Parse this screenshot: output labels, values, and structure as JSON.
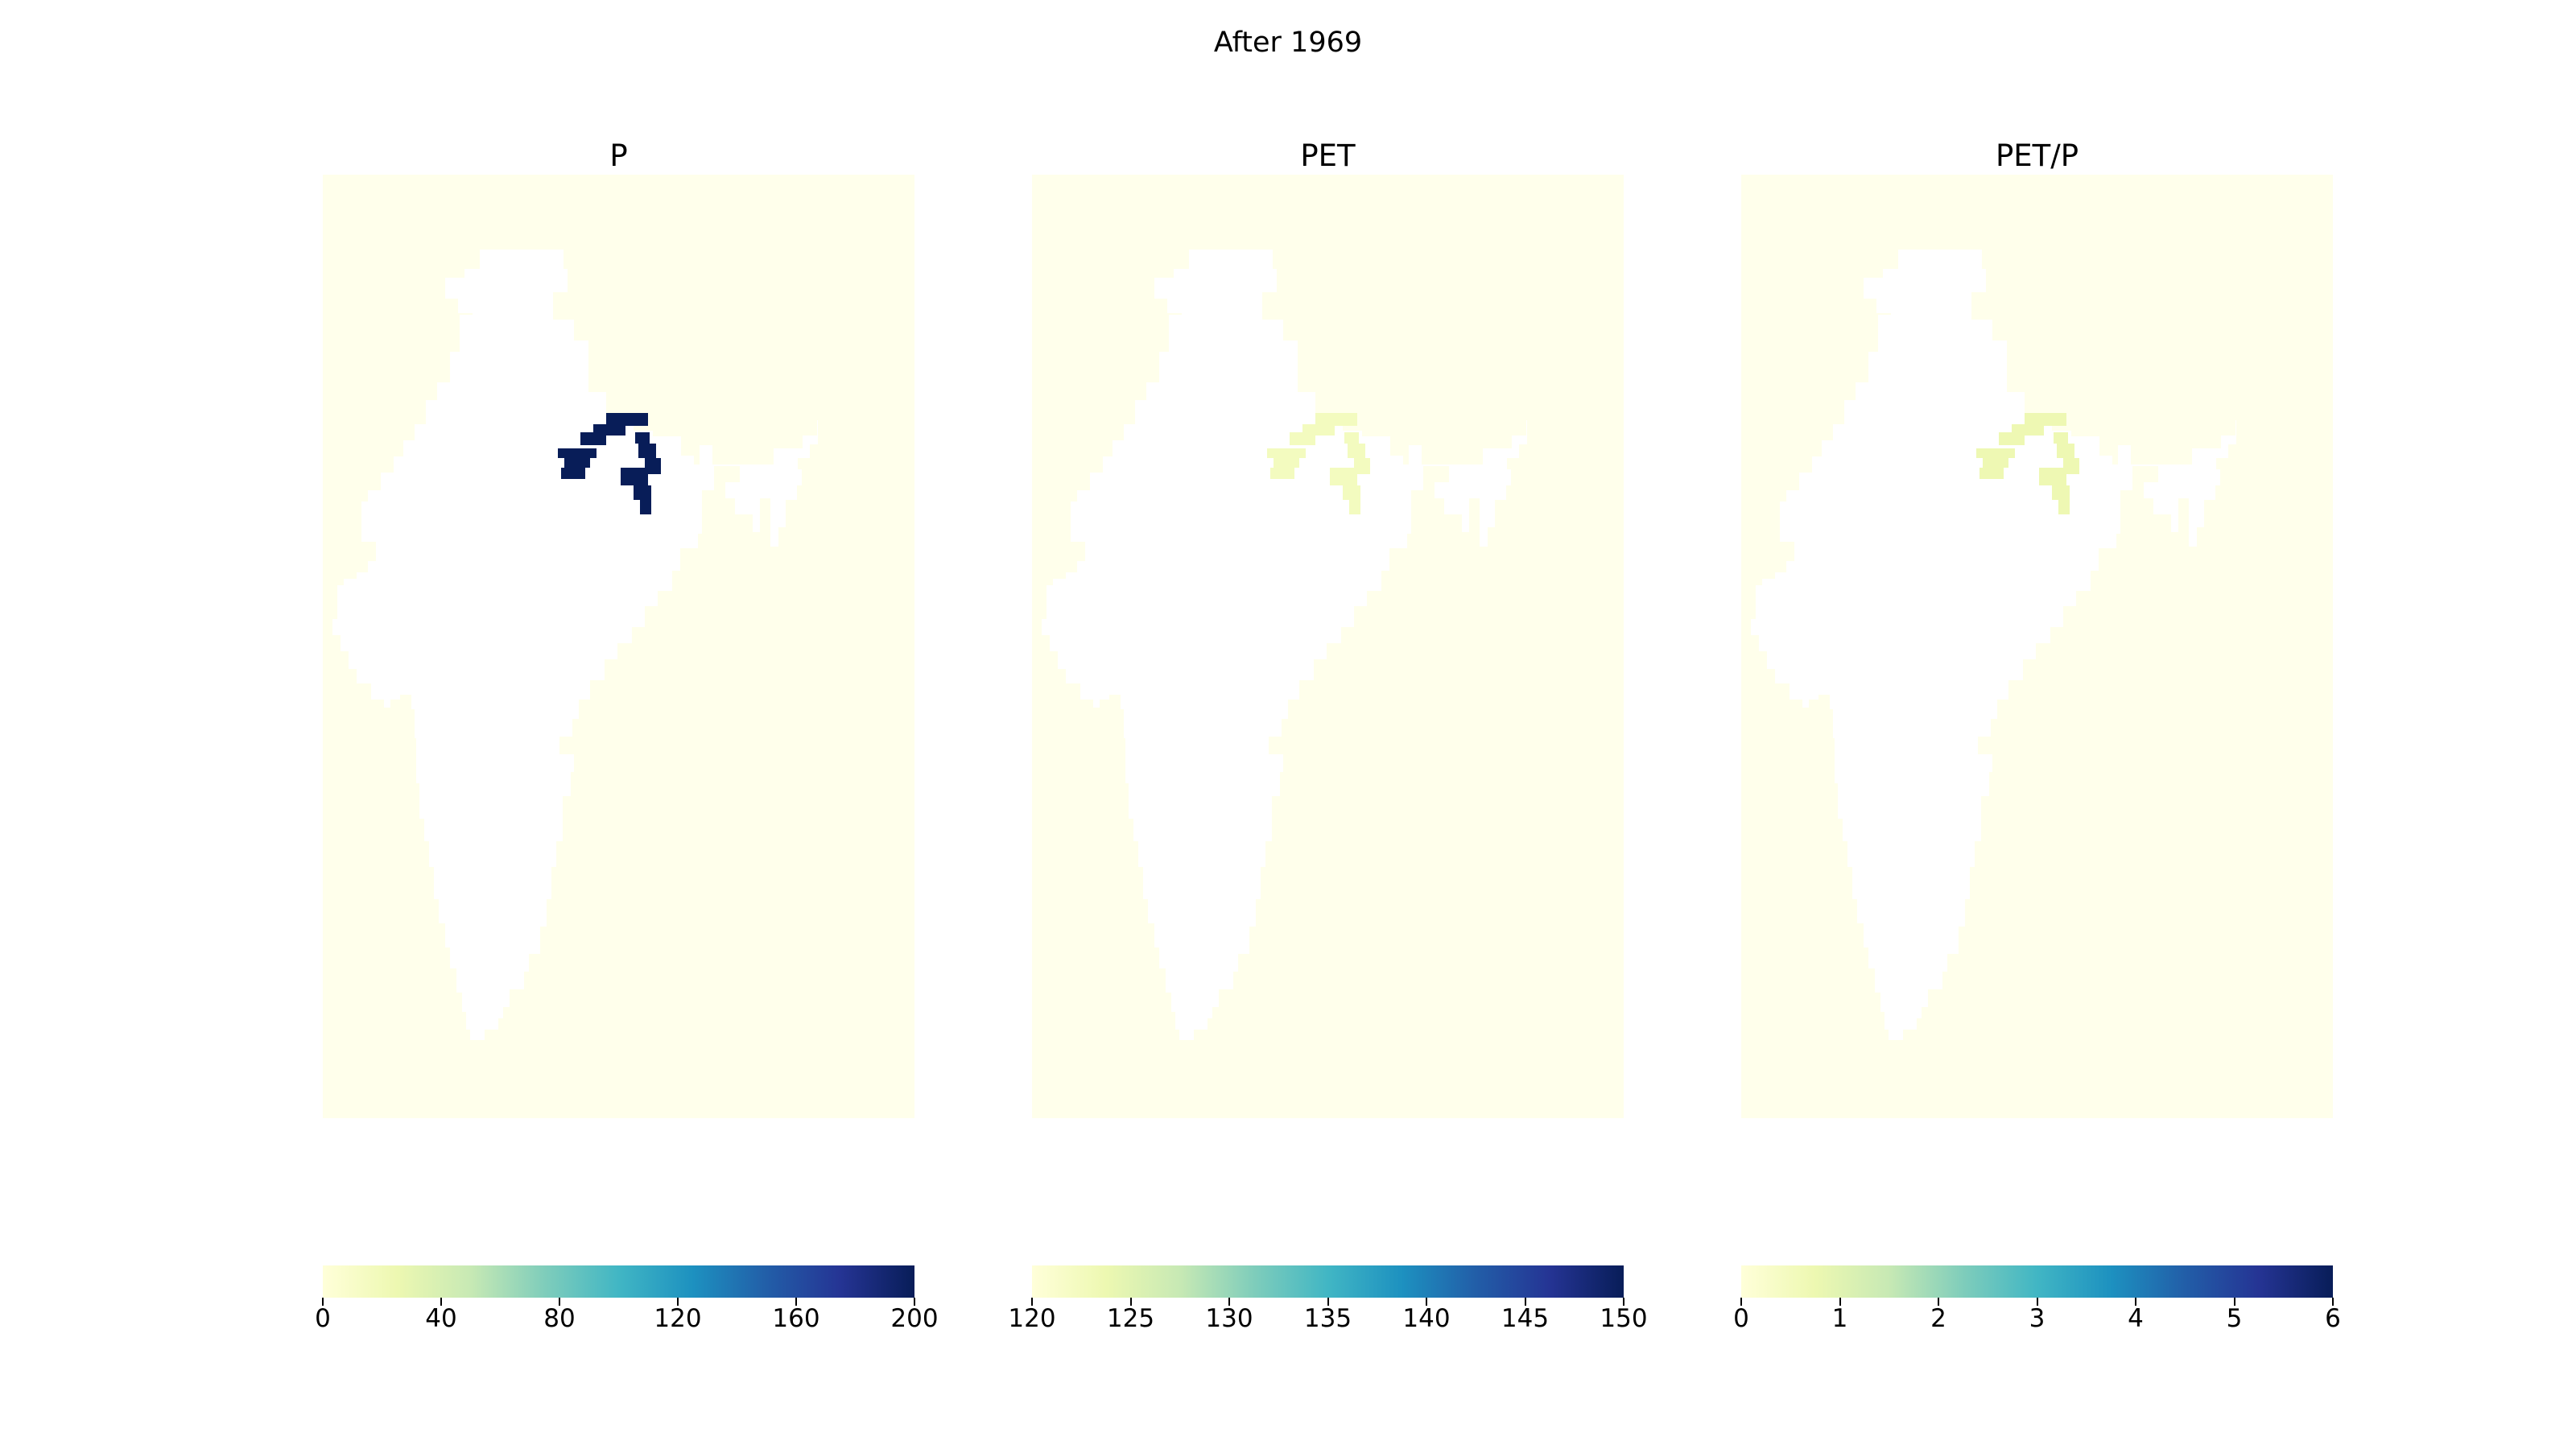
{
  "figure": {
    "title": "After 1969",
    "background_color": "#ffffeb",
    "land_color": "#ffffff",
    "colormap": "YlGnBu",
    "colormap_stops": [
      "#ffffd9",
      "#edf8b1",
      "#c7e9b4",
      "#7fcdbb",
      "#41b6c4",
      "#1d91c0",
      "#225ea8",
      "#253494",
      "#081d58"
    ]
  },
  "panels": [
    {
      "title": "P",
      "colorbar": {
        "min": 0,
        "max": 200,
        "ticks": [
          "0",
          "40",
          "80",
          "120",
          "160",
          "200"
        ]
      },
      "highlight_region": "northeast",
      "highlight_level": 1.0
    },
    {
      "title": "PET",
      "colorbar": {
        "min": 120,
        "max": 150,
        "ticks": [
          "120",
          "125",
          "130",
          "135",
          "140",
          "145",
          "150"
        ]
      },
      "highlight_region": "northeast",
      "highlight_level": 0.08
    },
    {
      "title": "PET/P",
      "colorbar": {
        "min": 0,
        "max": 6,
        "ticks": [
          "0",
          "1",
          "2",
          "3",
          "4",
          "5",
          "6"
        ]
      },
      "highlight_region": "northeast",
      "highlight_level": 0.12
    }
  ]
}
